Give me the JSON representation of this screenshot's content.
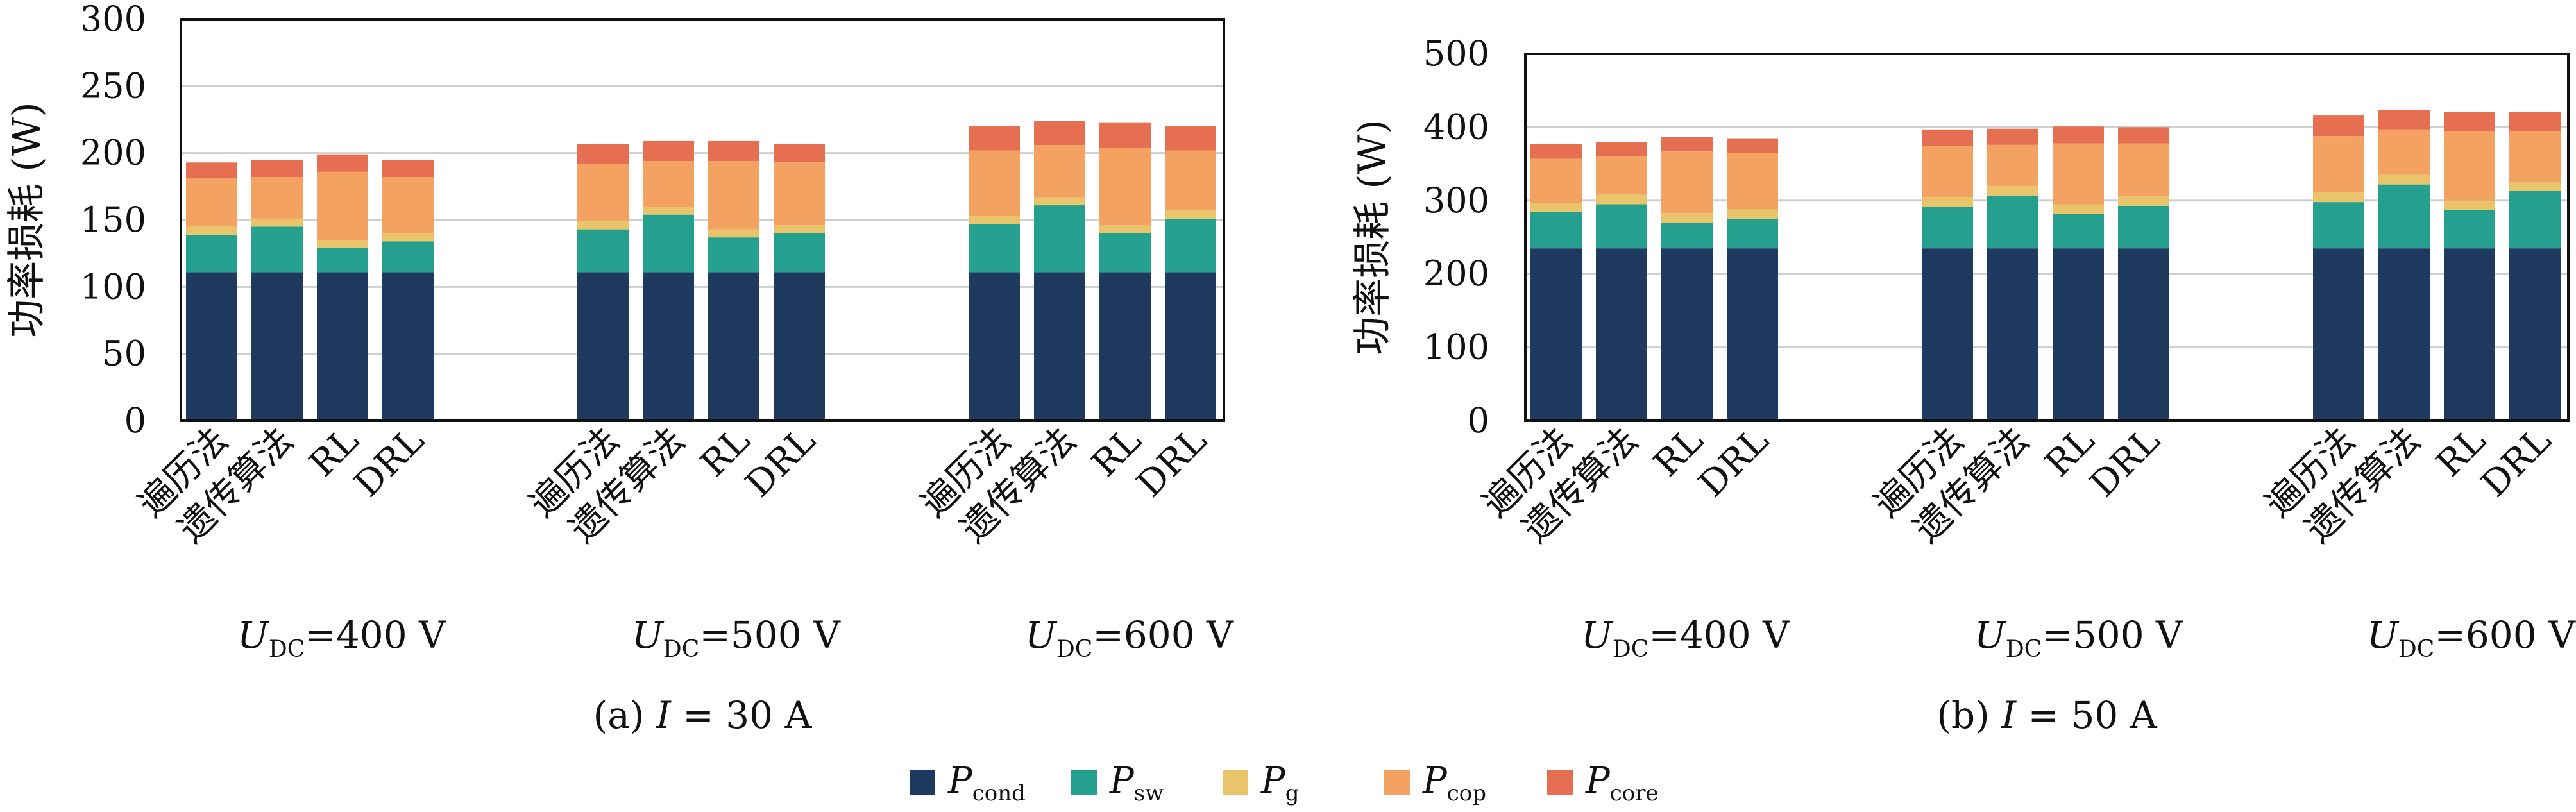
{
  "colors": {
    "cond": "#1f3a5f",
    "sw": "#26a08e",
    "g": "#e9c46a",
    "cop": "#f4a261",
    "core": "#e76f51",
    "grid": "#cfcfcf",
    "axis": "#111111"
  },
  "legend": {
    "placement": "bottom-center",
    "items": [
      {
        "key": "cond",
        "symbol": "P",
        "sub": "cond"
      },
      {
        "key": "sw",
        "symbol": "P",
        "sub": "sw"
      },
      {
        "key": "g",
        "symbol": "P",
        "sub": "g"
      },
      {
        "key": "cop",
        "symbol": "P",
        "sub": "cop"
      },
      {
        "key": "core",
        "symbol": "P",
        "sub": "core"
      }
    ]
  },
  "chart_data": [
    {
      "type": "bar",
      "stacked": true,
      "caption": "(a) I = 30 A",
      "caption_parts": {
        "prefix": "(a) ",
        "var": "I",
        "rest": " = 30 A"
      },
      "ylabel": "功率损耗 (W)",
      "ylim": [
        0,
        300
      ],
      "yticks": [
        0,
        50,
        100,
        150,
        200,
        250,
        300
      ],
      "grid": true,
      "categories": [
        "遍历法",
        "遗传算法",
        "RL",
        "DRL"
      ],
      "groups": [
        {
          "label": "=400 V",
          "var": "U",
          "sub": "DC"
        },
        {
          "label": "=500 V",
          "var": "U",
          "sub": "DC"
        },
        {
          "label": "=600 V",
          "var": "U",
          "sub": "DC"
        }
      ],
      "series": [
        {
          "key": "cond",
          "values": [
            [
              111,
              111,
              111,
              111
            ],
            [
              111,
              111,
              111,
              111
            ],
            [
              111,
              111,
              111,
              111
            ]
          ]
        },
        {
          "key": "sw",
          "values": [
            [
              28,
              34,
              18,
              23
            ],
            [
              32,
              43,
              26,
              29
            ],
            [
              36,
              50,
              29,
              40
            ]
          ]
        },
        {
          "key": "g",
          "values": [
            [
              6,
              6,
              6,
              6
            ],
            [
              6,
              6,
              6,
              6
            ],
            [
              6,
              6,
              6,
              6
            ]
          ]
        },
        {
          "key": "cop",
          "values": [
            [
              36,
              31,
              51,
              42
            ],
            [
              43,
              34,
              51,
              47
            ],
            [
              49,
              39,
              58,
              45
            ]
          ]
        },
        {
          "key": "core",
          "values": [
            [
              12,
              13,
              13,
              13
            ],
            [
              15,
              15,
              15,
              14
            ],
            [
              18,
              18,
              19,
              18
            ]
          ]
        }
      ]
    },
    {
      "type": "bar",
      "stacked": true,
      "caption": "(b) I = 50 A",
      "caption_parts": {
        "prefix": "(b) ",
        "var": "I",
        "rest": " = 50 A"
      },
      "ylabel": "功率损耗 (W)",
      "ylim": [
        0,
        500
      ],
      "yticks": [
        0,
        100,
        200,
        300,
        400,
        500
      ],
      "grid": true,
      "categories": [
        "遍历法",
        "遗传算法",
        "RL",
        "DRL"
      ],
      "groups": [
        {
          "label": "=400 V",
          "var": "U",
          "sub": "DC"
        },
        {
          "label": "=500 V",
          "var": "U",
          "sub": "DC"
        },
        {
          "label": "=600 V",
          "var": "U",
          "sub": "DC"
        }
      ],
      "series": [
        {
          "key": "cond",
          "values": [
            [
              235,
              235,
              235,
              235
            ],
            [
              235,
              235,
              235,
              235
            ],
            [
              235,
              235,
              235,
              235
            ]
          ]
        },
        {
          "key": "sw",
          "values": [
            [
              50,
              60,
              35,
              40
            ],
            [
              57,
              72,
              47,
              58
            ],
            [
              63,
              87,
              52,
              78
            ]
          ]
        },
        {
          "key": "g",
          "values": [
            [
              12,
              13,
              13,
              13
            ],
            [
              13,
              13,
              13,
              13
            ],
            [
              13,
              13,
              13,
              13
            ]
          ]
        },
        {
          "key": "cop",
          "values": [
            [
              60,
              52,
              84,
              77
            ],
            [
              70,
              56,
              83,
              72
            ],
            [
              77,
              62,
              94,
              68
            ]
          ]
        },
        {
          "key": "core",
          "values": [
            [
              20,
              20,
              20,
              20
            ],
            [
              22,
              22,
              23,
              22
            ],
            [
              28,
              27,
              27,
              27
            ]
          ]
        }
      ]
    }
  ]
}
